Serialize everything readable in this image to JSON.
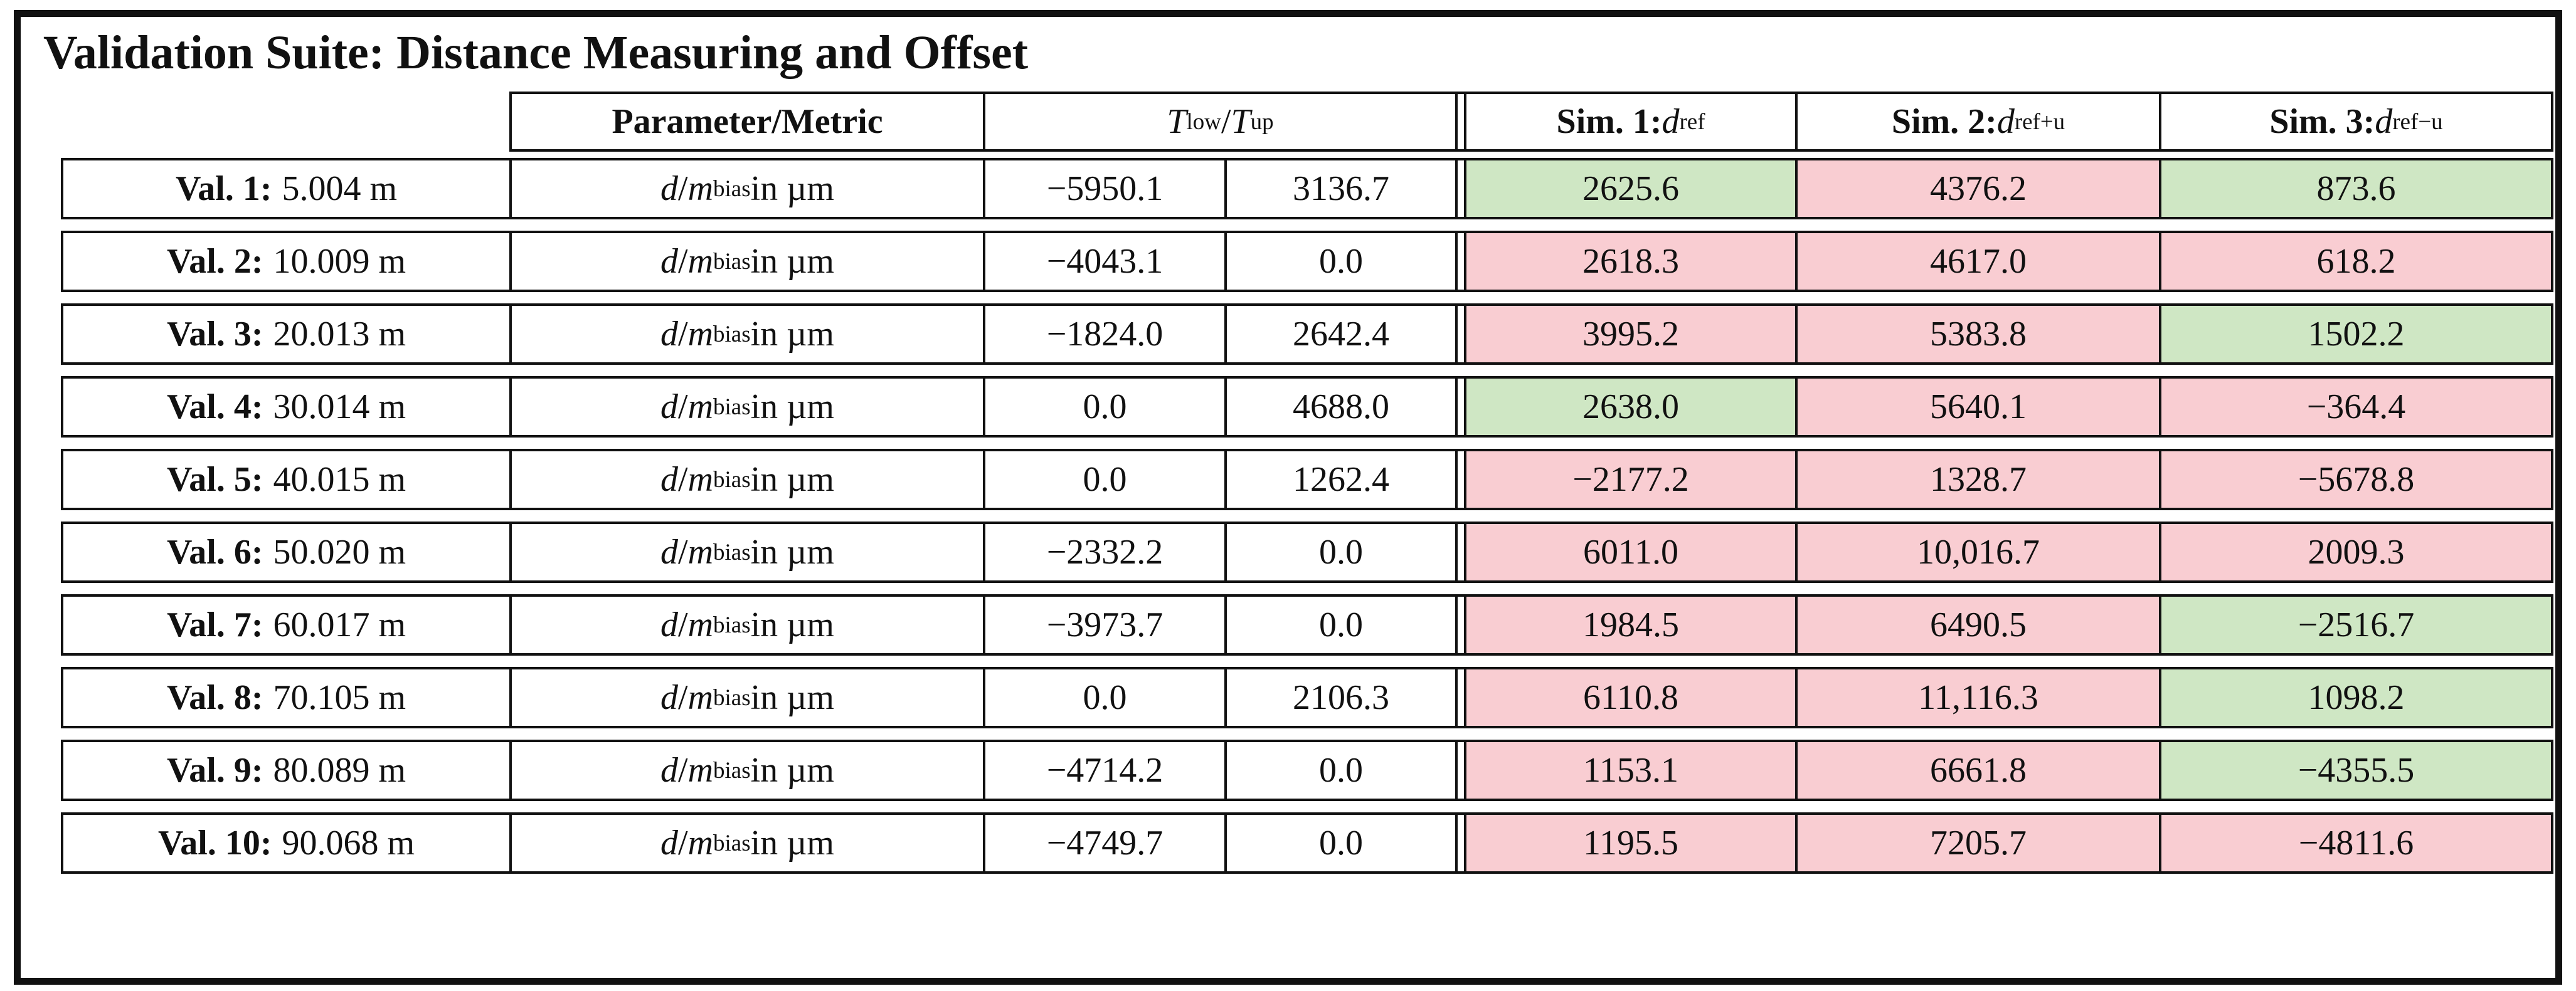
{
  "title": "Validation Suite: Distance Measuring and Offset",
  "colors": {
    "pass": "#cfe7c4",
    "fail": "#f9cdd2"
  },
  "header": {
    "param": "Parameter/Metric",
    "t_html": "<i>T</i><sub>low</sub> / <i>T</i><sub>up</sub>",
    "sim1_html": "<b>Sim. 1:</b> <i>d</i><sub>ref</sub>",
    "sim2_html": "<b>Sim. 2:</b> <i>d</i><sub>ref+u</sub>",
    "sim3_html": "<b>Sim. 3:</b> <i>d</i><sub>ref−u</sub>"
  },
  "labels": {
    "metric_html": "<i>d</i> / <i>m</i><sub>bias</sub> in µm"
  },
  "rows": [
    {
      "label_bold": "Val. 1:",
      "label_value": "5.004 m",
      "t_low": "−5950.1",
      "t_up": "3136.7",
      "sims": [
        {
          "value": "2625.6",
          "status": "pass"
        },
        {
          "value": "4376.2",
          "status": "fail"
        },
        {
          "value": "873.6",
          "status": "pass"
        }
      ]
    },
    {
      "label_bold": "Val. 2:",
      "label_value": "10.009 m",
      "t_low": "−4043.1",
      "t_up": "0.0",
      "sims": [
        {
          "value": "2618.3",
          "status": "fail"
        },
        {
          "value": "4617.0",
          "status": "fail"
        },
        {
          "value": "618.2",
          "status": "fail"
        }
      ]
    },
    {
      "label_bold": "Val. 3:",
      "label_value": "20.013 m",
      "t_low": "−1824.0",
      "t_up": "2642.4",
      "sims": [
        {
          "value": "3995.2",
          "status": "fail"
        },
        {
          "value": "5383.8",
          "status": "fail"
        },
        {
          "value": "1502.2",
          "status": "pass"
        }
      ]
    },
    {
      "label_bold": "Val. 4:",
      "label_value": "30.014 m",
      "t_low": "0.0",
      "t_up": "4688.0",
      "sims": [
        {
          "value": "2638.0",
          "status": "pass"
        },
        {
          "value": "5640.1",
          "status": "fail"
        },
        {
          "value": "−364.4",
          "status": "fail"
        }
      ]
    },
    {
      "label_bold": "Val. 5:",
      "label_value": "40.015 m",
      "t_low": "0.0",
      "t_up": "1262.4",
      "sims": [
        {
          "value": "−2177.2",
          "status": "fail"
        },
        {
          "value": "1328.7",
          "status": "fail"
        },
        {
          "value": "−5678.8",
          "status": "fail"
        }
      ]
    },
    {
      "label_bold": "Val. 6:",
      "label_value": "50.020 m",
      "t_low": "−2332.2",
      "t_up": "0.0",
      "sims": [
        {
          "value": "6011.0",
          "status": "fail"
        },
        {
          "value": "10,016.7",
          "status": "fail"
        },
        {
          "value": "2009.3",
          "status": "fail"
        }
      ]
    },
    {
      "label_bold": "Val. 7:",
      "label_value": "60.017 m",
      "t_low": "−3973.7",
      "t_up": "0.0",
      "sims": [
        {
          "value": "1984.5",
          "status": "fail"
        },
        {
          "value": "6490.5",
          "status": "fail"
        },
        {
          "value": "−2516.7",
          "status": "pass"
        }
      ]
    },
    {
      "label_bold": "Val. 8:",
      "label_value": "70.105 m",
      "t_low": "0.0",
      "t_up": "2106.3",
      "sims": [
        {
          "value": "6110.8",
          "status": "fail"
        },
        {
          "value": "11,116.3",
          "status": "fail"
        },
        {
          "value": "1098.2",
          "status": "pass"
        }
      ]
    },
    {
      "label_bold": "Val. 9:",
      "label_value": "80.089 m",
      "t_low": "−4714.2",
      "t_up": "0.0",
      "sims": [
        {
          "value": "1153.1",
          "status": "fail"
        },
        {
          "value": "6661.8",
          "status": "fail"
        },
        {
          "value": "−4355.5",
          "status": "pass"
        }
      ]
    },
    {
      "label_bold": "Val. 10:",
      "label_value": "90.068 m",
      "t_low": "−4749.7",
      "t_up": "0.0",
      "sims": [
        {
          "value": "1195.5",
          "status": "fail"
        },
        {
          "value": "7205.7",
          "status": "fail"
        },
        {
          "value": "−4811.6",
          "status": "fail"
        }
      ]
    }
  ]
}
